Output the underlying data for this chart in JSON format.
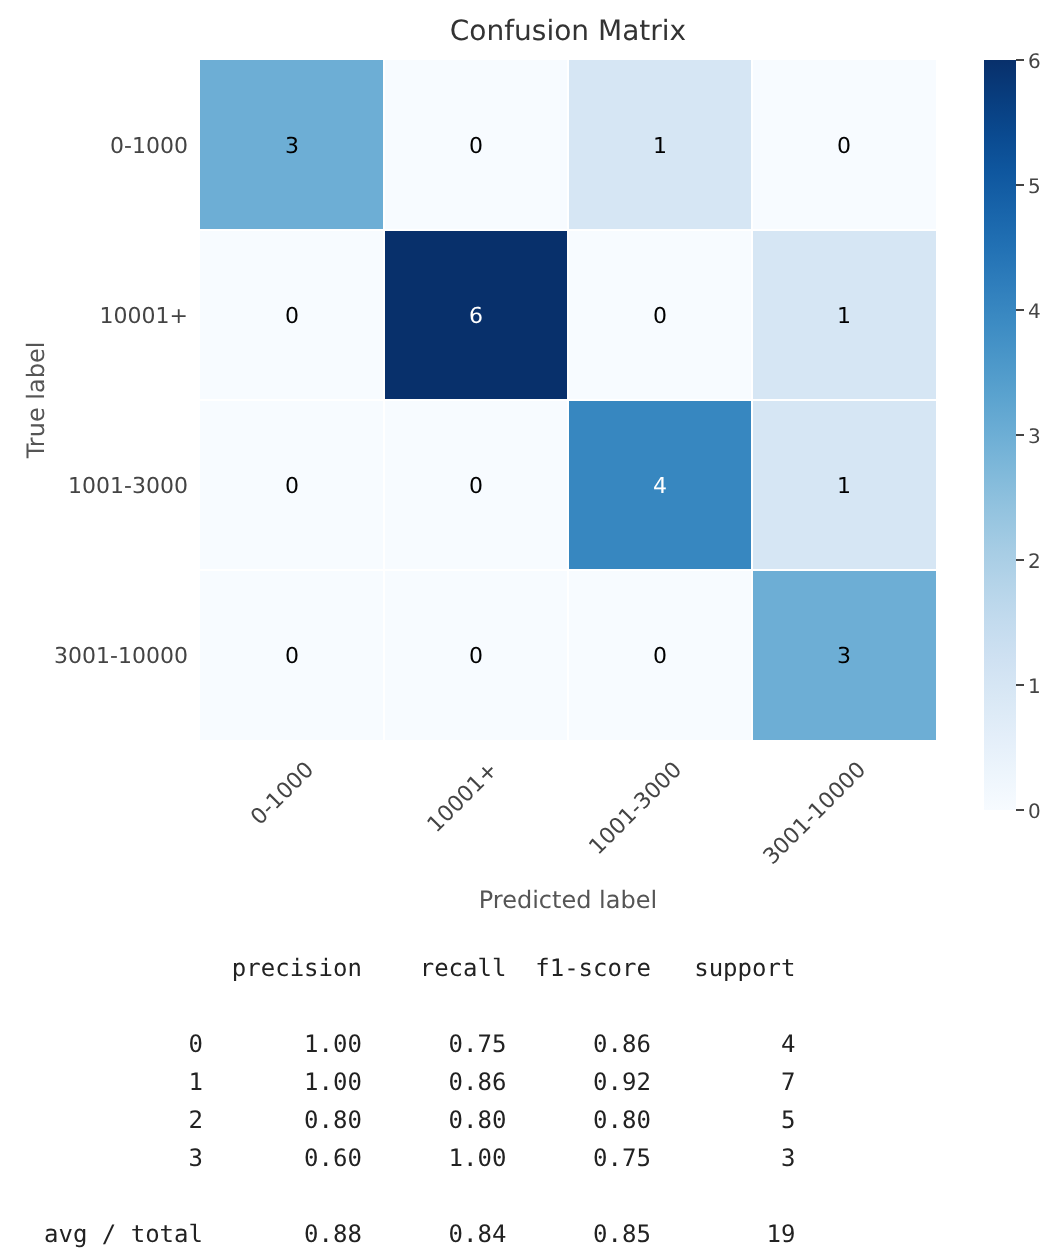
{
  "chart_data": {
    "type": "heatmap",
    "title": "Confusion Matrix",
    "xlabel": "Predicted label",
    "ylabel": "True label",
    "categories": [
      "0-1000",
      "10001+",
      "1001-3000",
      "3001-10000"
    ],
    "y_categories": [
      "0-1000",
      "10001+",
      "1001-3000",
      "3001-10000"
    ],
    "cells": [
      [
        3,
        0,
        1,
        0
      ],
      [
        0,
        6,
        0,
        1
      ],
      [
        0,
        0,
        4,
        1
      ],
      [
        0,
        0,
        0,
        3
      ]
    ],
    "clim": [
      0,
      6
    ],
    "cticks": [
      0,
      1,
      2,
      3,
      4,
      5,
      6
    ],
    "grid": true,
    "data_labels": true,
    "annotations": [
      "             precision    recall  f1-score   support",
      "          0       1.00      0.75      0.86         4",
      "          1       1.00      0.86      0.92         7",
      "          2       0.80      0.80      0.80         5",
      "          3       0.60      1.00      0.75         3",
      "avg / total       0.88      0.84      0.85        19"
    ]
  }
}
